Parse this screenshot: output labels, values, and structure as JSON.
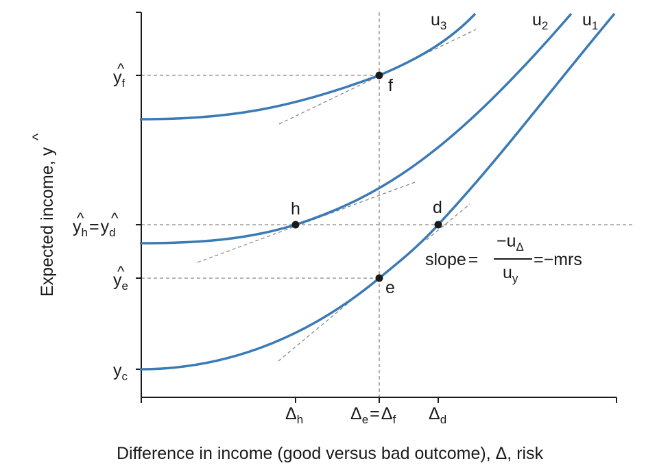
{
  "axes": {
    "y_label": "Expected income, ",
    "y_label_symbol": "y",
    "x_label": "Difference in income (good versus bad outcome), Δ, risk"
  },
  "curves": [
    {
      "letter": "u",
      "sub": "3",
      "color": "#3a7ab5"
    },
    {
      "letter": "u",
      "sub": "2",
      "color": "#3a7ab5"
    },
    {
      "letter": "u",
      "sub": "1",
      "color": "#3a7ab5"
    }
  ],
  "points": [
    "f",
    "h",
    "d",
    "e"
  ],
  "y_ticks": {
    "yf": {
      "base": "y",
      "sub": "f"
    },
    "yhd": {
      "left_base": "y",
      "left_sub": "h",
      "eq": "=",
      "right_base": "y",
      "right_sub": "d"
    },
    "ye": {
      "base": "y",
      "sub": "e"
    },
    "yc": {
      "base": "y",
      "sub": "c"
    }
  },
  "x_ticks": {
    "dh": {
      "base": "Δ",
      "sub": "h"
    },
    "def": {
      "left_base": "Δ",
      "left_sub": "e",
      "eq": "=",
      "right_base": "Δ",
      "right_sub": "f"
    },
    "dd": {
      "base": "Δ",
      "sub": "d"
    }
  },
  "slope_annotation": {
    "prefix": "slope",
    "eq1": "=",
    "num_sign": "−",
    "num_base": "u",
    "num_sub": "Δ",
    "den_base": "u",
    "den_sub": "y",
    "eq2": "=",
    "tail": "−mrs"
  },
  "hat_glyph": "^"
}
